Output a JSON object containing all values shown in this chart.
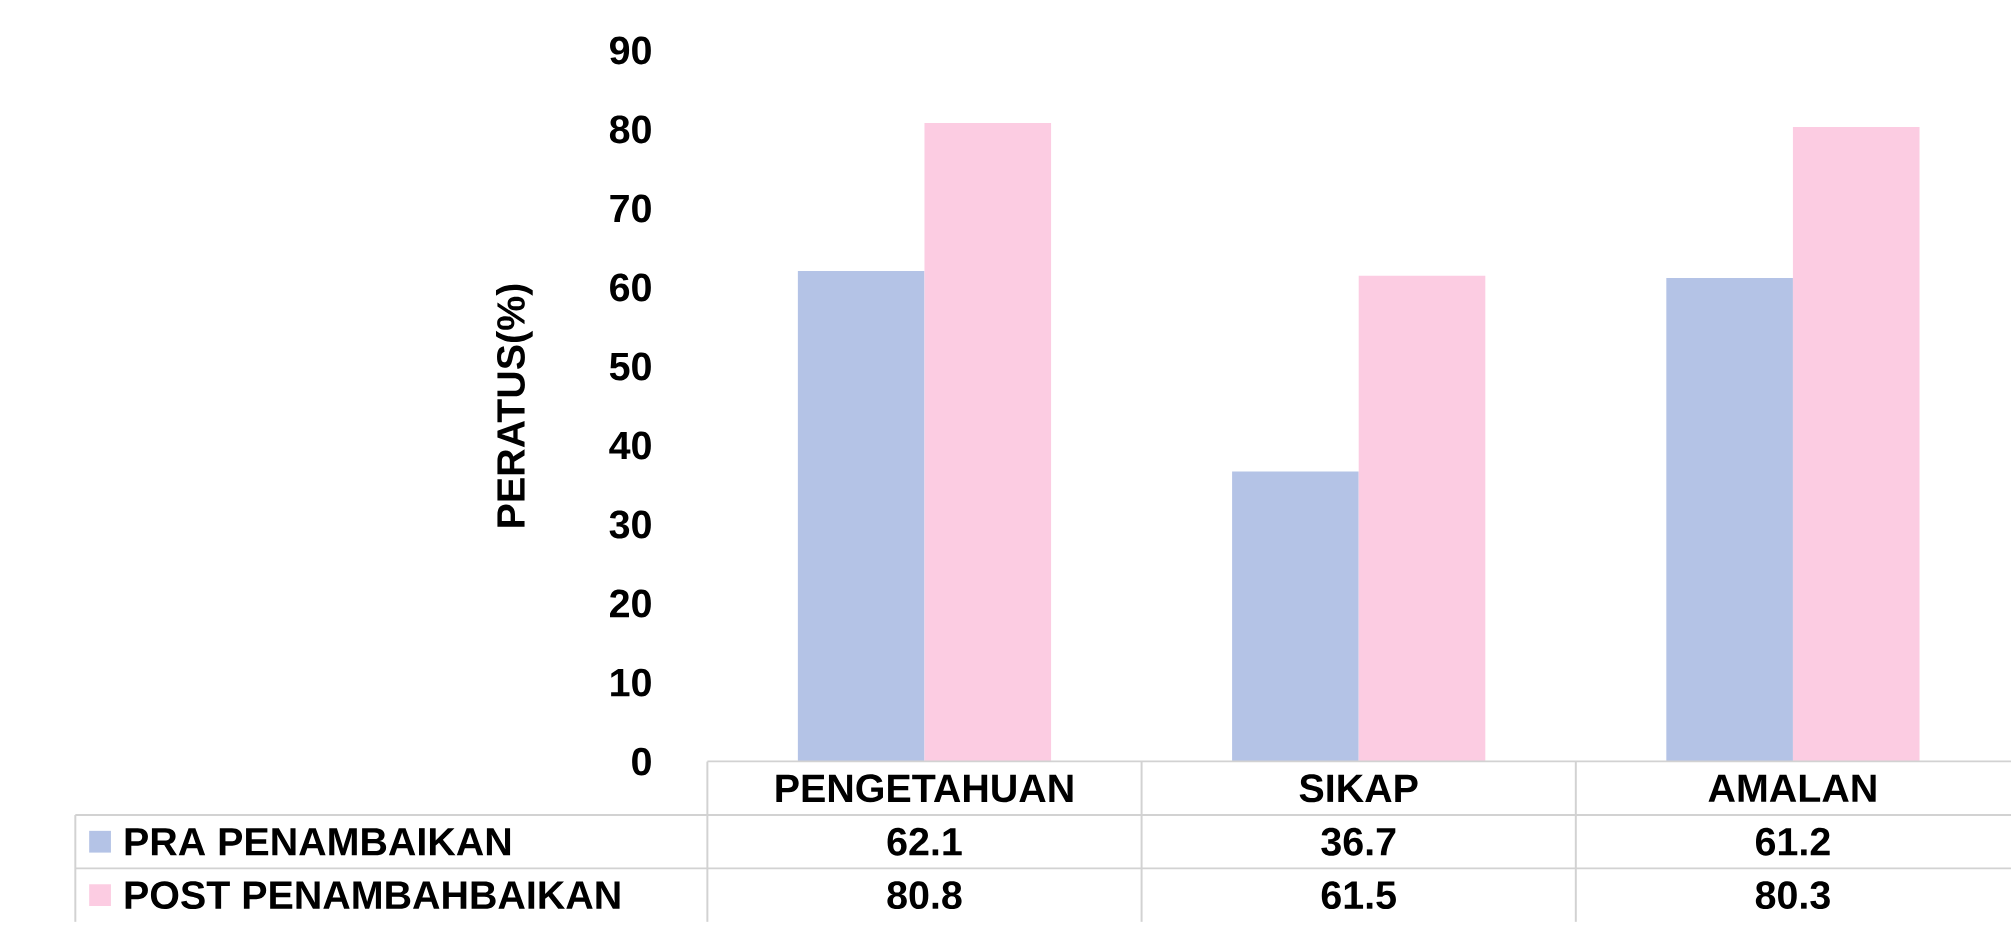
{
  "chart_data": {
    "type": "bar",
    "ylabel": "PERATUS(%)",
    "categories": [
      "PENGETAHUAN",
      "SIKAP",
      "AMALAN"
    ],
    "series": [
      {
        "name": "PRA PENAMBAIKAN",
        "color": "#b4c3e6",
        "values": [
          62.1,
          36.7,
          61.2
        ]
      },
      {
        "name": "POST PENAMBAHBAIKAN",
        "color": "#fccce2",
        "values": [
          80.8,
          61.5,
          80.3
        ]
      }
    ],
    "ylim": [
      0,
      90
    ],
    "yticks": [
      0,
      10,
      20,
      30,
      40,
      50,
      60,
      70,
      80,
      90
    ],
    "data_labels": true,
    "legend": "bottom"
  }
}
